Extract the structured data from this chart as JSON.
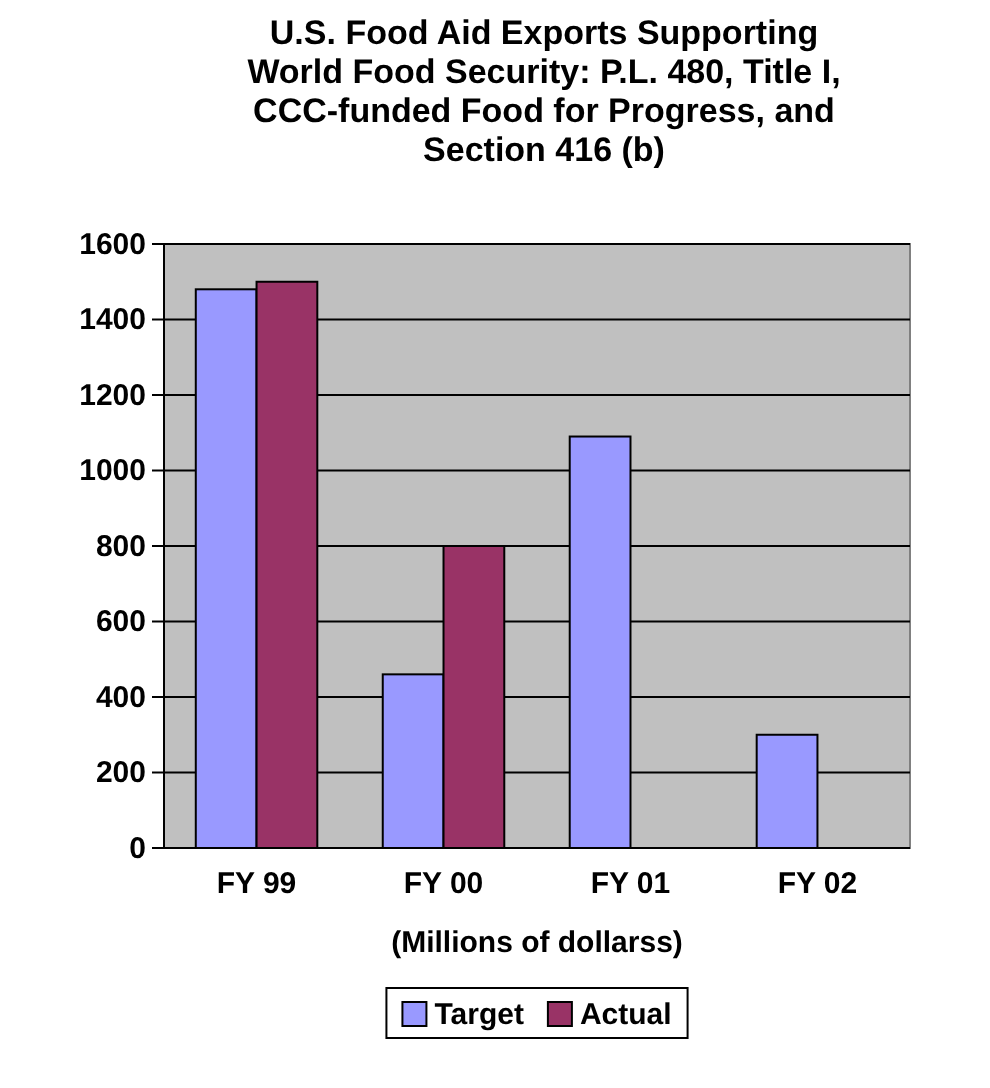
{
  "chart_data": {
    "type": "bar",
    "title": "U.S. Food Aid Exports Supporting World Food Security: P.L. 480, Title I, CCC-funded Food for Progress, and Section 416 (b)",
    "xlabel": "(Millions of dollarss)",
    "categories": [
      "FY 99",
      "FY 00",
      "FY 01",
      "FY 02"
    ],
    "series": [
      {
        "name": "Target",
        "color": "#9999ff",
        "values": [
          1480,
          460,
          1090,
          300
        ]
      },
      {
        "name": "Actual",
        "color": "#993366",
        "values": [
          1500,
          800,
          0,
          0
        ]
      }
    ],
    "ylim": [
      0,
      1600
    ],
    "yticks": [
      0,
      200,
      400,
      600,
      800,
      1000,
      1200,
      1400,
      1600
    ],
    "grid": "y",
    "legend": "bottom"
  }
}
